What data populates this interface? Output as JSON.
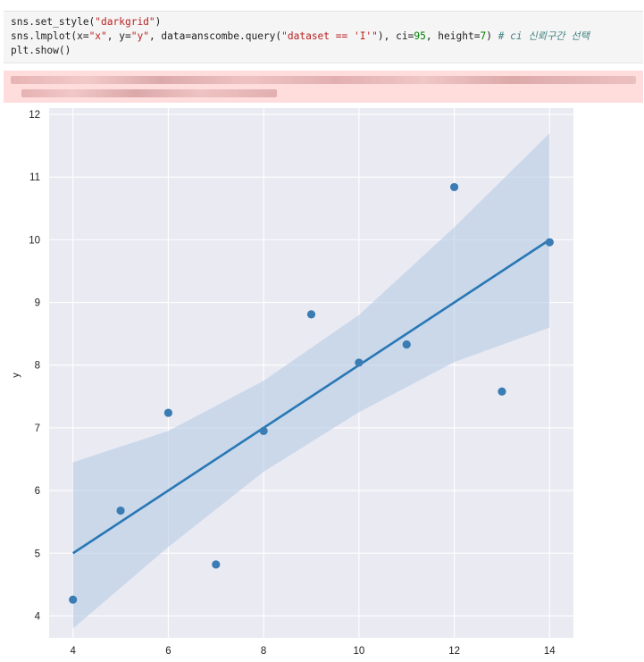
{
  "code_cell": {
    "line1": {
      "a": "sns.set_style(",
      "s": "\"darkgrid\"",
      "b": ")"
    },
    "line2": {
      "a": "sns.lmplot(x=",
      "s1": "\"x\"",
      "b": ", y=",
      "s2": "\"y\"",
      "c": ", data=anscombe.query(",
      "s3": "\"dataset == 'I'\"",
      "d": "), ci=",
      "n1": "95",
      "e": ", height=",
      "n2": "7",
      "f": ") ",
      "comment": "# ci 신뢰구간 선택"
    },
    "line3": {
      "a": "plt.show()"
    }
  },
  "output": {
    "kind": "warning (redacted)",
    "background": "#ffdddd"
  },
  "chart_data": {
    "type": "scatter",
    "style": "darkgrid",
    "title": "",
    "xlabel": "",
    "ylabel": "y",
    "xlim": [
      3.5,
      14.5
    ],
    "ylim": [
      3.65,
      12.1
    ],
    "x_ticks": [
      4,
      6,
      8,
      10,
      12,
      14
    ],
    "y_ticks": [
      4,
      5,
      6,
      7,
      8,
      9,
      10,
      11,
      12
    ],
    "points": [
      {
        "x": 10,
        "y": 8.04
      },
      {
        "x": 8,
        "y": 6.95
      },
      {
        "x": 13,
        "y": 7.58
      },
      {
        "x": 9,
        "y": 8.81
      },
      {
        "x": 11,
        "y": 8.33
      },
      {
        "x": 14,
        "y": 9.96
      },
      {
        "x": 6,
        "y": 7.24
      },
      {
        "x": 4,
        "y": 4.26
      },
      {
        "x": 12,
        "y": 10.84
      },
      {
        "x": 7,
        "y": 4.82
      },
      {
        "x": 5,
        "y": 5.68
      }
    ],
    "regression_line": {
      "x0": 4,
      "y0": 5.0,
      "x1": 14,
      "y1": 10.0
    },
    "ci_band": {
      "x": [
        4,
        6,
        8,
        10,
        12,
        14
      ],
      "upper": [
        6.45,
        6.95,
        7.75,
        8.8,
        10.2,
        11.7
      ],
      "lower": [
        3.8,
        5.1,
        6.3,
        7.25,
        8.05,
        8.6
      ]
    },
    "colors": {
      "background": "#eaeaf2",
      "grid": "#ffffff",
      "points": "#3a7cb4",
      "line": "#2878b5",
      "band": "#b8cde5",
      "tick_text": "#222222"
    }
  }
}
